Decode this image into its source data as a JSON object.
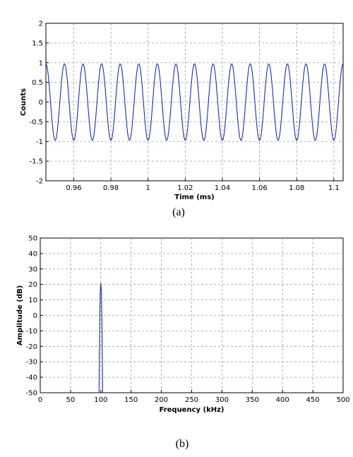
{
  "chart_data": [
    {
      "type": "line",
      "caption": "(a)",
      "xlabel": "Time (ms)",
      "ylabel": "Counts",
      "xlim": [
        0.945,
        1.105
      ],
      "ylim": [
        -2,
        2
      ],
      "xticks": [
        0.96,
        0.98,
        1.0,
        1.02,
        1.04,
        1.06,
        1.08,
        1.1
      ],
      "xtick_labels": [
        "0.96",
        "0.98",
        "1",
        "1.02",
        "1.04",
        "1.06",
        "1.08",
        "1.1"
      ],
      "yticks": [
        -2,
        -1.5,
        -1,
        -0.5,
        0,
        0.5,
        1,
        1.5,
        2
      ],
      "ytick_labels": [
        "-2",
        "-1.5",
        "-1",
        "-0.5",
        "0",
        "0.5",
        "1",
        "1.5",
        "2"
      ],
      "grid": true,
      "line_color": "#1f2fa0",
      "series": [
        {
          "signal": "sine",
          "amplitude": 0.97,
          "frequency_khz": 100,
          "phase_deg": 270
        }
      ]
    },
    {
      "type": "line",
      "caption": "(b)",
      "xlabel": "Frequency (kHz)",
      "ylabel": "Amplitude (dB)",
      "xlim": [
        0,
        500
      ],
      "ylim": [
        -50,
        50
      ],
      "xticks": [
        0,
        50,
        100,
        150,
        200,
        250,
        300,
        350,
        400,
        450,
        500
      ],
      "xtick_labels": [
        "0",
        "50",
        "100",
        "150",
        "200",
        "250",
        "300",
        "350",
        "400",
        "450",
        "500"
      ],
      "yticks": [
        -50,
        -40,
        -30,
        -20,
        -10,
        0,
        10,
        20,
        30,
        40,
        50
      ],
      "ytick_labels": [
        "-50",
        "-40",
        "-30",
        "-20",
        "-10",
        "0",
        "10",
        "20",
        "30",
        "40",
        "50"
      ],
      "grid": true,
      "line_color": "#1f2fa0",
      "series": [
        {
          "x": [
            97,
            98,
            99,
            100,
            101,
            102,
            103
          ],
          "y": [
            -50,
            -10,
            15,
            21,
            15,
            -10,
            -50
          ]
        }
      ]
    }
  ]
}
